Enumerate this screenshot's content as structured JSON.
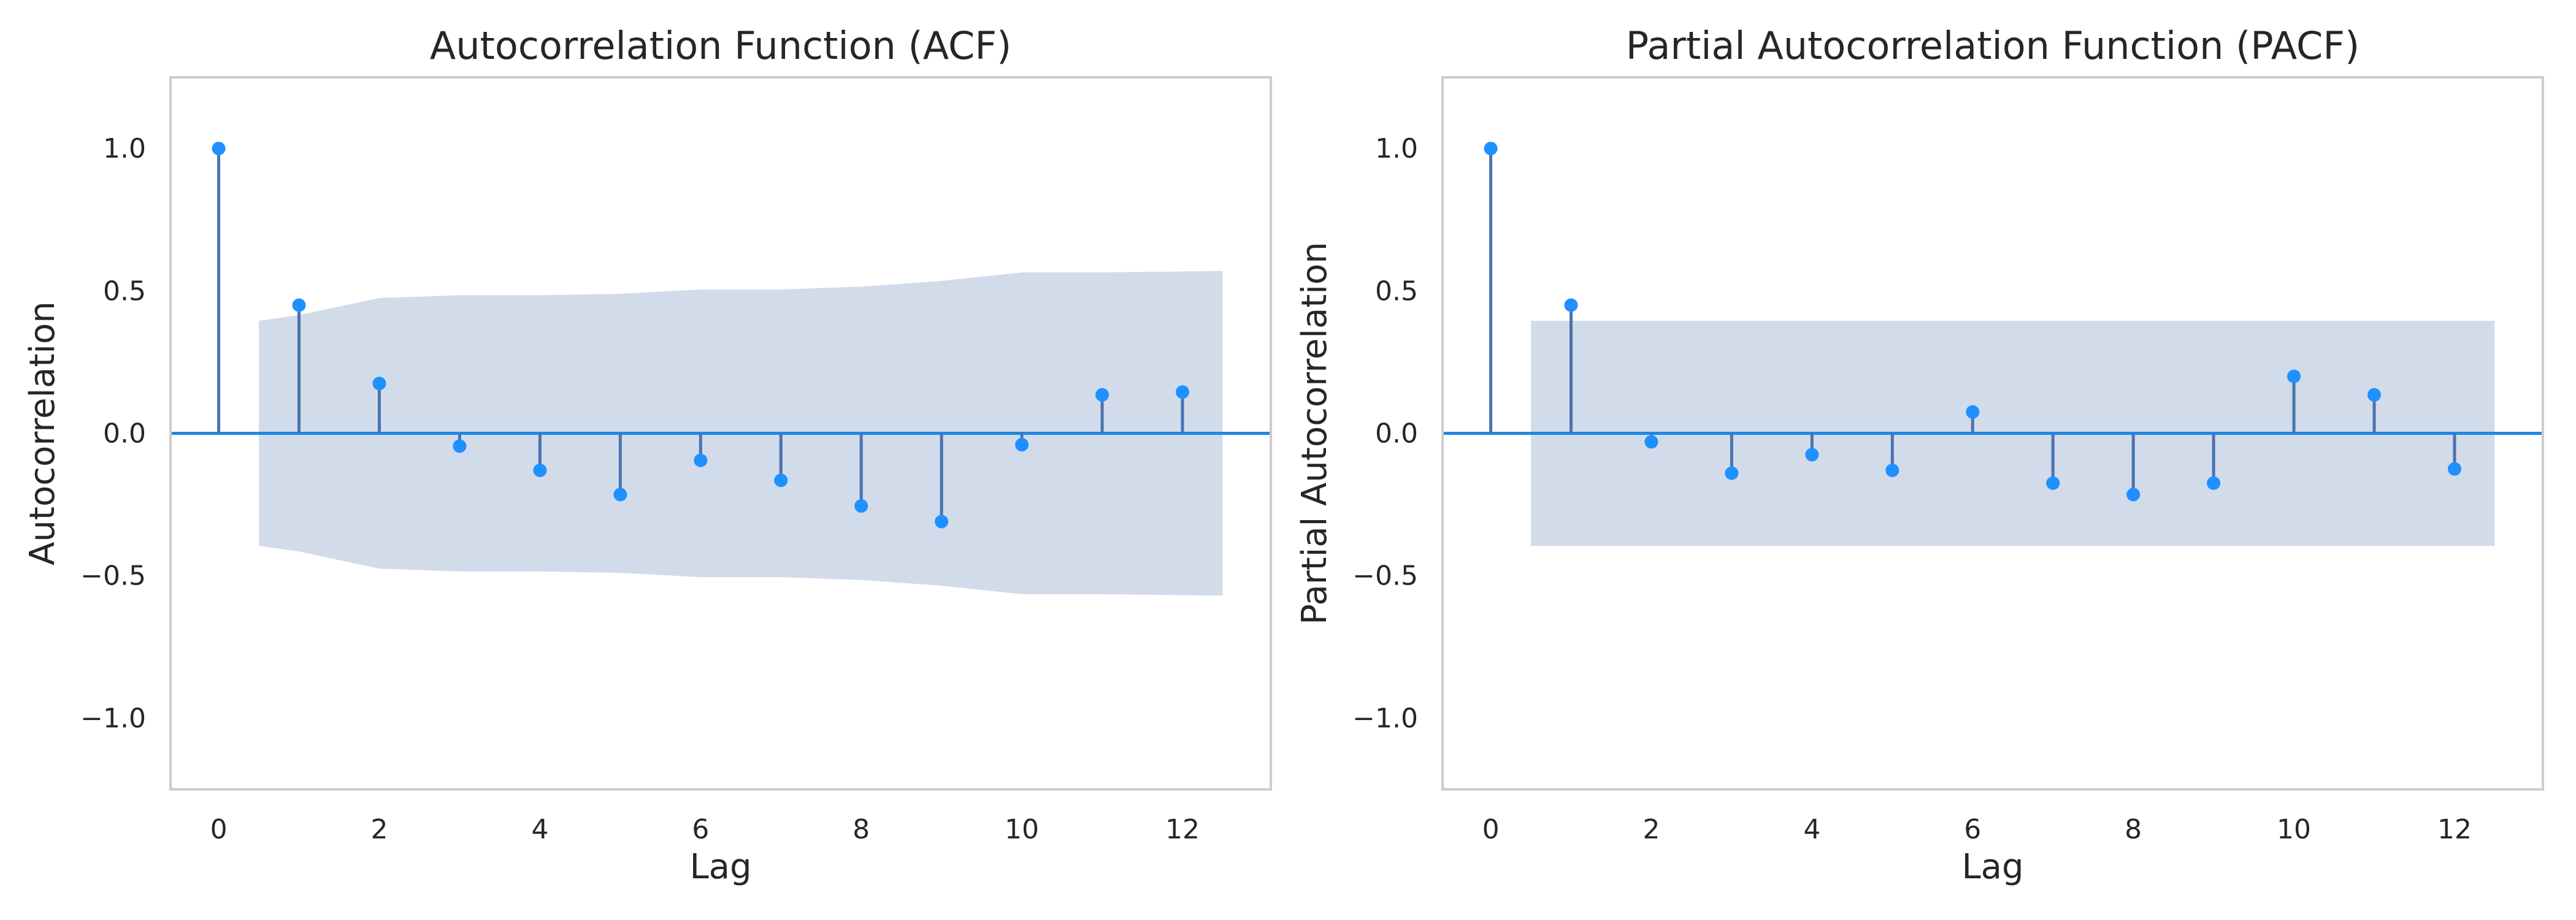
{
  "chart_data": [
    {
      "type": "stem",
      "title": "Autocorrelation Function (ACF)",
      "xlabel": "Lag",
      "ylabel": "Autocorrelation",
      "xlim": [
        -0.6,
        13.1
      ],
      "ylim": [
        -1.25,
        1.25
      ],
      "xticks": [
        "0",
        "2",
        "4",
        "6",
        "8",
        "10",
        "12"
      ],
      "yticks": [
        "−1.0",
        "−0.5",
        "0.0",
        "0.5",
        "1.0"
      ],
      "grid": false,
      "x": [
        0,
        1,
        2,
        3,
        4,
        5,
        6,
        7,
        8,
        9,
        10,
        11,
        12
      ],
      "values": [
        1.0,
        0.45,
        0.175,
        -0.045,
        -0.13,
        -0.215,
        -0.095,
        -0.165,
        -0.255,
        -0.31,
        -0.04,
        0.135,
        0.145
      ],
      "confidence_band": {
        "x": [
          0.5,
          1,
          2,
          3,
          4,
          5,
          6,
          7,
          8,
          9,
          10,
          11,
          12.5
        ],
        "upper": [
          0.395,
          0.415,
          0.475,
          0.485,
          0.485,
          0.49,
          0.505,
          0.505,
          0.515,
          0.535,
          0.565,
          0.565,
          0.57
        ]
      }
    },
    {
      "type": "stem",
      "title": "Partial Autocorrelation Function (PACF)",
      "xlabel": "Lag",
      "ylabel": "Partial Autocorrelation",
      "xlim": [
        -0.6,
        13.1
      ],
      "ylim": [
        -1.25,
        1.25
      ],
      "xticks": [
        "0",
        "2",
        "4",
        "6",
        "8",
        "10",
        "12"
      ],
      "yticks": [
        "−1.0",
        "−0.5",
        "0.0",
        "0.5",
        "1.0"
      ],
      "grid": false,
      "x": [
        0,
        1,
        2,
        3,
        4,
        5,
        6,
        7,
        8,
        9,
        10,
        11,
        12
      ],
      "values": [
        1.0,
        0.45,
        -0.03,
        -0.14,
        -0.075,
        -0.13,
        0.075,
        -0.175,
        -0.215,
        -0.175,
        0.2,
        0.135,
        -0.125
      ],
      "confidence_band": {
        "x": [
          0.5,
          12.5
        ],
        "upper": [
          0.395,
          0.395
        ]
      }
    }
  ],
  "style": {
    "stem_color": "#4c72b0",
    "marker_color": "#1e90ff",
    "zero_line_color": "#1e88e5",
    "band_color": "#d2dbea",
    "frame_color": "#cccccc"
  }
}
